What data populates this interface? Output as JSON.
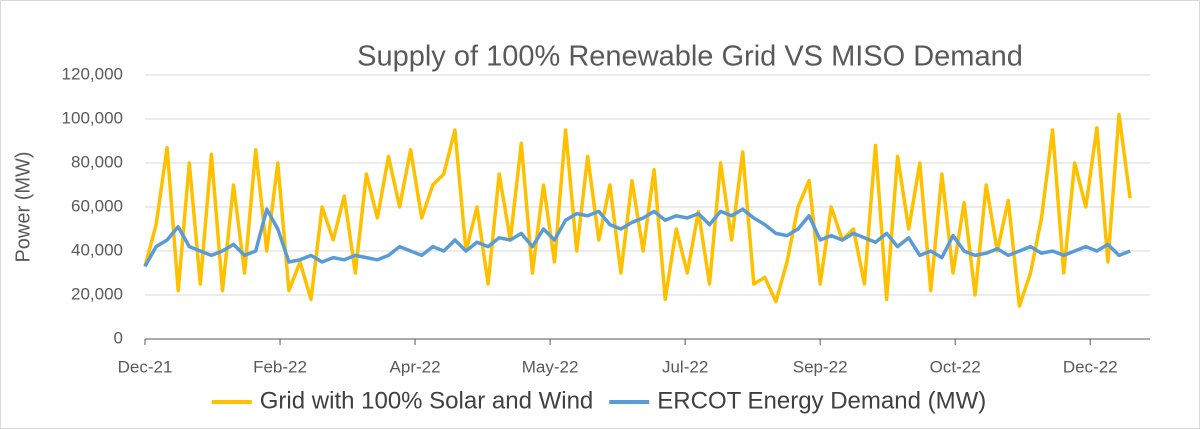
{
  "chart_data": {
    "type": "line",
    "title": "Supply of 100% Renewable Grid VS MISO Demand",
    "y_label": "Power (MW)",
    "x": [
      0,
      5,
      10,
      15,
      20,
      25,
      30,
      35,
      40,
      45,
      50,
      55,
      60,
      65,
      70,
      75,
      80,
      85,
      90,
      95,
      100,
      105,
      110,
      115,
      120,
      125,
      130,
      135,
      140,
      145,
      150,
      155,
      160,
      165,
      170,
      175,
      180,
      185,
      190,
      195,
      200,
      205,
      210,
      215,
      220,
      225,
      230,
      235,
      240,
      245,
      250,
      255,
      260,
      265,
      270,
      275,
      280,
      285,
      290,
      295,
      300,
      305,
      310,
      315,
      320,
      325,
      330,
      335,
      340,
      345,
      350,
      355,
      360,
      365,
      370,
      375,
      380,
      385,
      390,
      395,
      400,
      405,
      410,
      415,
      420,
      425,
      430,
      435,
      440,
      445
    ],
    "xlim": [
      0,
      454
    ],
    "xticks": [
      {
        "value": 0,
        "label": "Dec-21"
      },
      {
        "value": 61,
        "label": "Feb-22"
      },
      {
        "value": 122,
        "label": "Apr-22"
      },
      {
        "value": 183,
        "label": "May-22"
      },
      {
        "value": 244,
        "label": "Jul-22"
      },
      {
        "value": 305,
        "label": "Sep-22"
      },
      {
        "value": 366,
        "label": "Oct-22"
      },
      {
        "value": 427,
        "label": "Dec-22"
      }
    ],
    "ylim": [
      0,
      120000
    ],
    "yticks": [
      0,
      {
        "value": 20000,
        "label": "20,000"
      },
      {
        "value": 40000,
        "label": "40,000"
      },
      {
        "value": 60000,
        "label": "60,000"
      },
      {
        "value": 80000,
        "label": "80,000"
      },
      {
        "value": 100000,
        "label": "100,000"
      },
      {
        "value": 120000,
        "label": "120,000"
      }
    ],
    "grid": true,
    "legend": "bottom",
    "series": [
      {
        "name": "Grid with 100% Solar and Wind",
        "color": "#FFC000",
        "values": [
          33000,
          52000,
          87000,
          22000,
          80000,
          25000,
          84000,
          22000,
          70000,
          30000,
          86000,
          40000,
          80000,
          22000,
          35000,
          18000,
          60000,
          45000,
          65000,
          30000,
          75000,
          55000,
          83000,
          60000,
          86000,
          55000,
          70000,
          75000,
          95000,
          40000,
          60000,
          25000,
          75000,
          45000,
          89000,
          30000,
          70000,
          35000,
          95000,
          40000,
          83000,
          45000,
          70000,
          30000,
          72000,
          40000,
          77000,
          18000,
          50000,
          30000,
          58000,
          25000,
          80000,
          45000,
          85000,
          25000,
          28000,
          17000,
          35000,
          60000,
          72000,
          25000,
          60000,
          45000,
          50000,
          25000,
          88000,
          18000,
          83000,
          50000,
          80000,
          22000,
          75000,
          30000,
          62000,
          20000,
          70000,
          40000,
          63000,
          15000,
          30000,
          55000,
          95000,
          30000,
          80000,
          60000,
          96000,
          35000,
          102000,
          64000
        ]
      },
      {
        "name": "ERCOT Energy Demand (MW)",
        "color": "#5B9BD5",
        "values": [
          33000,
          42000,
          45000,
          51000,
          42000,
          40000,
          38000,
          40000,
          43000,
          38000,
          40000,
          59000,
          50000,
          35000,
          36000,
          38000,
          35000,
          37000,
          36000,
          38000,
          37000,
          36000,
          38000,
          42000,
          40000,
          38000,
          42000,
          40000,
          45000,
          40000,
          44000,
          42000,
          46000,
          45000,
          48000,
          42000,
          50000,
          45000,
          54000,
          57000,
          56000,
          58000,
          52000,
          50000,
          53000,
          55000,
          58000,
          54000,
          56000,
          55000,
          57000,
          52000,
          58000,
          56000,
          59000,
          55000,
          52000,
          48000,
          47000,
          50000,
          56000,
          45000,
          47000,
          45000,
          48000,
          46000,
          44000,
          48000,
          42000,
          46000,
          38000,
          40000,
          37000,
          47000,
          40000,
          38000,
          39000,
          41000,
          38000,
          40000,
          42000,
          39000,
          40000,
          38000,
          40000,
          42000,
          40000,
          43000,
          38000,
          40000
        ]
      }
    ]
  }
}
